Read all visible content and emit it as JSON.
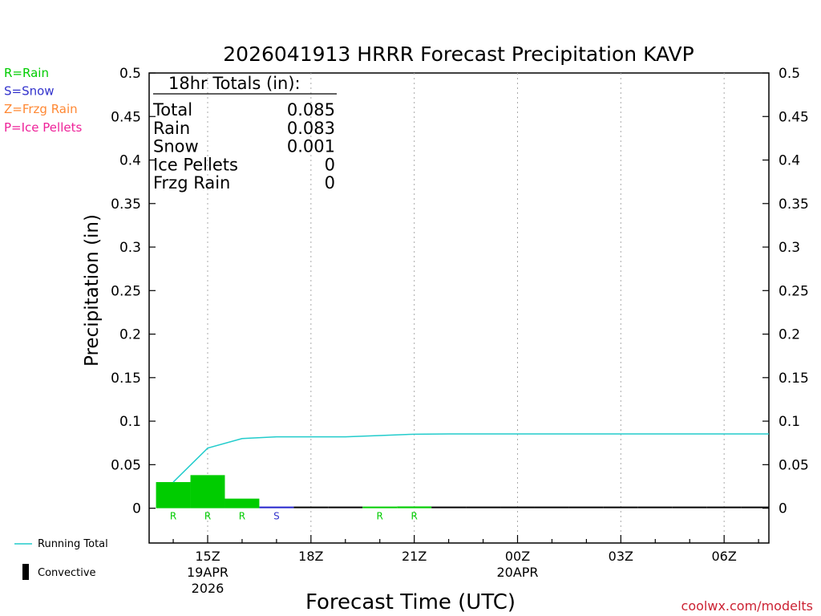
{
  "chart_data": {
    "type": "bar",
    "title": "2026041913 HRRR Forecast Precipitation KAVP",
    "xlabel": "Forecast Time (UTC)",
    "ylabel": "Precipitation (in)",
    "ylim": [
      -0.04,
      0.5
    ],
    "xlim": [
      13.3,
      31.3
    ],
    "yticks": [
      0,
      0.05,
      0.1,
      0.15,
      0.2,
      0.25,
      0.3,
      0.35,
      0.4,
      0.45,
      0.5
    ],
    "ytick_labels": [
      "0",
      "0.05",
      "0.1",
      "0.15",
      "0.2",
      "0.25",
      "0.3",
      "0.35",
      "0.4",
      "0.45",
      "0.5"
    ],
    "xticks": [
      {
        "x": 15,
        "label": "15Z",
        "date": "19APR",
        "year": "2026"
      },
      {
        "x": 18,
        "label": "18Z"
      },
      {
        "x": 21,
        "label": "21Z"
      },
      {
        "x": 24,
        "label": "00Z",
        "date": "20APR"
      },
      {
        "x": 27,
        "label": "03Z"
      },
      {
        "x": 30,
        "label": "06Z"
      }
    ],
    "grid": "vertical-dotted",
    "type_legend": [
      {
        "code": "R",
        "text": "R=Rain",
        "color": "#00cc00"
      },
      {
        "code": "S",
        "text": "S=Snow",
        "color": "#3333cc"
      },
      {
        "code": "Z",
        "text": "Z=Frzg Rain",
        "color": "#ff8833"
      },
      {
        "code": "P",
        "text": "P=Ice Pellets",
        "color": "#ee2299"
      }
    ],
    "series_legend": [
      {
        "text": "Running Total",
        "color": "#22cccc",
        "kind": "line"
      },
      {
        "text": "Convective",
        "color": "#000000",
        "kind": "bar"
      }
    ],
    "bars": [
      {
        "x": 14,
        "value": 0.03,
        "type": "R",
        "color": "#00cc00"
      },
      {
        "x": 15,
        "value": 0.038,
        "type": "R",
        "color": "#00cc00"
      },
      {
        "x": 16,
        "value": 0.011,
        "type": "R",
        "color": "#00cc00"
      },
      {
        "x": 17,
        "value": 0.001,
        "type": "S",
        "color": "#2222cc"
      },
      {
        "x": 18,
        "value": 0,
        "type": "",
        "color": "#000000"
      },
      {
        "x": 19,
        "value": 0,
        "type": "",
        "color": "#000000"
      },
      {
        "x": 20,
        "value": 0.0005,
        "type": "R",
        "color": "#00cc00"
      },
      {
        "x": 21,
        "value": 0.002,
        "type": "R",
        "color": "#00cc00"
      },
      {
        "x": 22,
        "value": 0,
        "type": "",
        "color": "#000000"
      },
      {
        "x": 23,
        "value": 0,
        "type": "",
        "color": "#000000"
      },
      {
        "x": 24,
        "value": 0,
        "type": "",
        "color": "#000000"
      },
      {
        "x": 25,
        "value": 0,
        "type": "",
        "color": "#000000"
      },
      {
        "x": 26,
        "value": 0,
        "type": "",
        "color": "#000000"
      },
      {
        "x": 27,
        "value": 0,
        "type": "",
        "color": "#000000"
      },
      {
        "x": 28,
        "value": 0,
        "type": "",
        "color": "#000000"
      },
      {
        "x": 29,
        "value": 0,
        "type": "",
        "color": "#000000"
      },
      {
        "x": 30,
        "value": 0,
        "type": "",
        "color": "#000000"
      },
      {
        "x": 31,
        "value": 0,
        "type": "",
        "color": "#000000"
      }
    ],
    "running_total": {
      "name": "Running Total",
      "color": "#22cccc",
      "x": [
        14,
        15,
        16,
        17,
        18,
        19,
        20,
        21,
        22,
        23,
        24,
        25,
        26,
        27,
        28,
        29,
        30,
        31,
        31.3
      ],
      "y": [
        0.03,
        0.069,
        0.08,
        0.082,
        0.082,
        0.082,
        0.0835,
        0.085,
        0.0853,
        0.0853,
        0.0853,
        0.0853,
        0.0853,
        0.0853,
        0.0853,
        0.0853,
        0.0853,
        0.0853,
        0.0853
      ]
    },
    "totals": {
      "title": "18hr Totals (in):",
      "rows": [
        {
          "label": "Total",
          "value": "0.085"
        },
        {
          "label": "Rain",
          "value": "0.083"
        },
        {
          "label": "Snow",
          "value": "0.001"
        },
        {
          "label": "Ice Pellets",
          "value": "0"
        },
        {
          "label": "Frzg Rain",
          "value": "0"
        }
      ]
    },
    "credit": "coolwx.com/modelts"
  }
}
